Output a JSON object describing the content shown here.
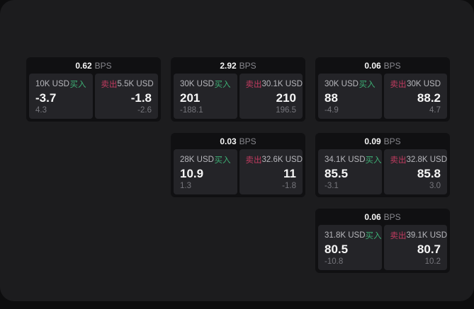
{
  "labels": {
    "bps_unit": "BPS",
    "buy": "买入",
    "sell": "卖出"
  },
  "colors": {
    "page_background": "#1c1c1e",
    "card_background": "#101012",
    "panel_background": "#242428",
    "buy_green": "#3dae74",
    "sell_red": "#c23b60"
  },
  "cards": [
    {
      "bps": "0.62",
      "col": 1,
      "row": 1,
      "buy": {
        "size": "10K USD",
        "price": "-3.7",
        "sub": "4.3"
      },
      "sell": {
        "size": "5.5K USD",
        "price": "-1.8",
        "sub": "-2.6"
      }
    },
    {
      "bps": "2.92",
      "col": 2,
      "row": 1,
      "buy": {
        "size": "30K USD",
        "price": "201",
        "sub": "-188.1"
      },
      "sell": {
        "size": "30.1K USD",
        "price": "210",
        "sub": "196.5"
      }
    },
    {
      "bps": "0.06",
      "col": 3,
      "row": 1,
      "buy": {
        "size": "30K USD",
        "price": "88",
        "sub": "-4.9"
      },
      "sell": {
        "size": "30K USD",
        "price": "88.2",
        "sub": "4.7"
      }
    },
    {
      "bps": "0.03",
      "col": 2,
      "row": 2,
      "buy": {
        "size": "28K USD",
        "price": "10.9",
        "sub": "1.3"
      },
      "sell": {
        "size": "32.6K USD",
        "price": "11",
        "sub": "-1.8"
      }
    },
    {
      "bps": "0.09",
      "col": 3,
      "row": 2,
      "buy": {
        "size": "34.1K USD",
        "price": "85.5",
        "sub": "-3.1"
      },
      "sell": {
        "size": "32.8K USD",
        "price": "85.8",
        "sub": "3.0"
      }
    },
    {
      "bps": "0.06",
      "col": 3,
      "row": 3,
      "buy": {
        "size": "31.8K USD",
        "price": "80.5",
        "sub": "-10.8"
      },
      "sell": {
        "size": "39.1K USD",
        "price": "80.7",
        "sub": "10.2"
      }
    }
  ]
}
